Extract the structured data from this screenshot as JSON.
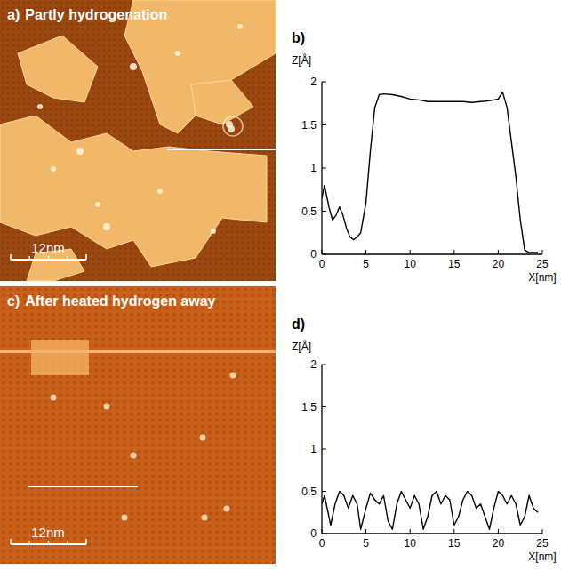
{
  "images": [
    {
      "letter": "a)",
      "title": "Partly hydrogenation",
      "scale_label": "12nm"
    },
    {
      "letter": "c)",
      "title": "After heated hydrogen away",
      "scale_label": "12nm"
    }
  ],
  "chart_data": [
    {
      "type": "line",
      "letter": "b)",
      "xlabel": "X[nm]",
      "ylabel": "Z[Å]",
      "x": [
        0,
        0.3,
        0.8,
        1.2,
        1.6,
        2,
        2.4,
        2.8,
        3.2,
        3.6,
        4,
        4.4,
        5,
        5.5,
        6,
        6.5,
        7,
        8,
        9,
        10,
        11,
        12,
        13,
        14,
        15,
        16,
        17,
        18,
        19,
        20,
        20.5,
        21,
        21.5,
        22,
        22.5,
        23,
        23.5,
        24,
        24.5
      ],
      "series": [
        {
          "color": "#000000",
          "values": [
            0.65,
            0.8,
            0.55,
            0.4,
            0.45,
            0.55,
            0.45,
            0.3,
            0.2,
            0.17,
            0.2,
            0.25,
            0.6,
            1.2,
            1.7,
            1.85,
            1.86,
            1.85,
            1.83,
            1.8,
            1.79,
            1.77,
            1.77,
            1.77,
            1.77,
            1.77,
            1.76,
            1.77,
            1.78,
            1.8,
            1.88,
            1.7,
            1.3,
            0.9,
            0.4,
            0.05,
            0.02,
            0.02,
            0.02
          ]
        }
      ],
      "xlim": [
        0,
        25
      ],
      "ylim": [
        0,
        2
      ],
      "xticks": [
        0,
        5,
        10,
        15,
        20,
        25
      ],
      "yticks": [
        0,
        0.5,
        1,
        1.5,
        2
      ]
    },
    {
      "type": "line",
      "letter": "d)",
      "xlabel": "X[nm]",
      "ylabel": "Z[Å]",
      "x": [
        0,
        0.3,
        0.6,
        1,
        1.5,
        2,
        2.5,
        3,
        3.5,
        4,
        4.4,
        5,
        5.5,
        6,
        6.5,
        7,
        7.5,
        8,
        8.5,
        9,
        9.5,
        10,
        10.5,
        11,
        11.5,
        12,
        12.5,
        13,
        13.5,
        14,
        14.5,
        15,
        15.5,
        16,
        16.5,
        17,
        17.5,
        18,
        18.5,
        19,
        19.5,
        20,
        20.5,
        21,
        21.5,
        22,
        22.5,
        23,
        23.5,
        24,
        24.5
      ],
      "series": [
        {
          "color": "#000000",
          "values": [
            0.35,
            0.45,
            0.3,
            0.1,
            0.35,
            0.5,
            0.45,
            0.3,
            0.45,
            0.35,
            0.05,
            0.3,
            0.48,
            0.4,
            0.35,
            0.45,
            0.15,
            0.05,
            0.35,
            0.5,
            0.4,
            0.3,
            0.45,
            0.35,
            0.05,
            0.2,
            0.45,
            0.5,
            0.35,
            0.45,
            0.4,
            0.1,
            0.2,
            0.4,
            0.5,
            0.45,
            0.3,
            0.35,
            0.2,
            0.05,
            0.3,
            0.5,
            0.45,
            0.35,
            0.45,
            0.35,
            0.1,
            0.2,
            0.45,
            0.3,
            0.25
          ]
        }
      ],
      "xlim": [
        0,
        25
      ],
      "ylim": [
        0,
        2
      ],
      "xticks": [
        0,
        5,
        10,
        15,
        20,
        25
      ],
      "yticks": [
        0,
        0.5,
        1,
        1.5,
        2
      ]
    }
  ]
}
